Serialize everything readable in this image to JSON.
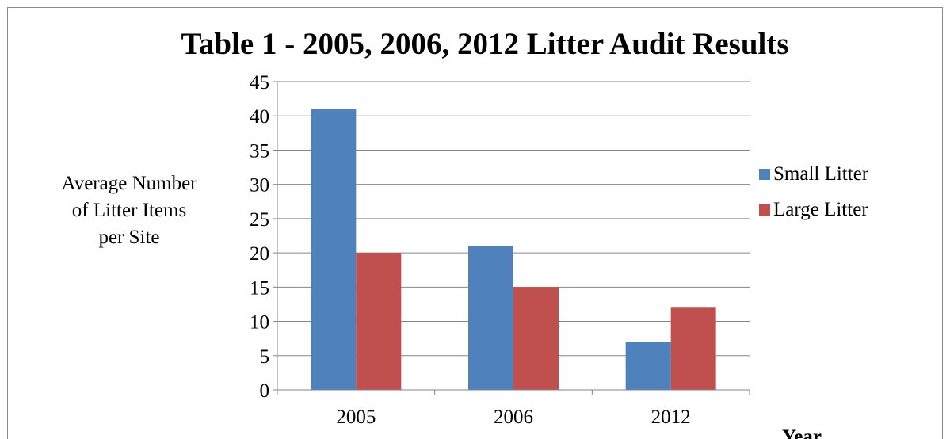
{
  "chart_data": {
    "type": "bar",
    "title": "Table 1 - 2005, 2006, 2012 Litter Audit Results",
    "ylabel_lines": [
      "Average Number",
      "of Litter Items",
      "per Site"
    ],
    "xlabel": "Year",
    "categories": [
      "2005",
      "2006",
      "2012"
    ],
    "series": [
      {
        "name": "Small Litter",
        "values": [
          41,
          21,
          7
        ],
        "color": "#4f81bd"
      },
      {
        "name": "Large Litter",
        "values": [
          20,
          15,
          12
        ],
        "color": "#c0504d"
      }
    ],
    "ylim": [
      0,
      45
    ],
    "yticks": [
      0,
      5,
      10,
      15,
      20,
      25,
      30,
      35,
      40,
      45
    ],
    "grid": true,
    "legend_position": "right"
  }
}
